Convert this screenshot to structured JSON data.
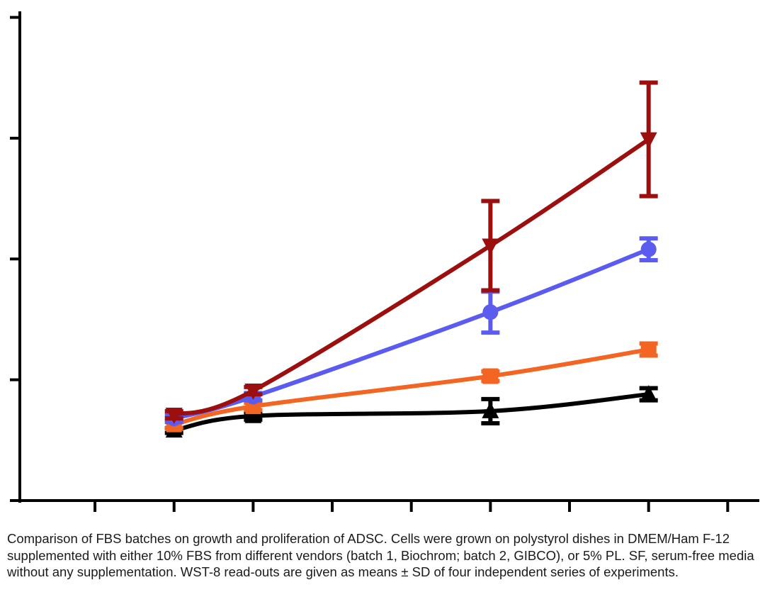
{
  "caption": "Comparison of FBS batches on growth and proliferation of ADSC. Cells were grown on polystyrol dishes in DMEM/Ham F-12 supplemented with either 10% FBS from different vendors (batch 1, Biochrom; batch 2, GIBCO), or 5% PL. SF, serum-free media without any supplementation. WST-8 read-outs are given as means ± SD of four independent series of experiments.",
  "chart_data": {
    "type": "line",
    "title": "",
    "xlabel": "",
    "ylabel": "",
    "x_ticks": [
      0,
      1,
      2,
      3,
      4,
      5,
      6,
      7,
      8
    ],
    "y_ticks": [
      0,
      1,
      2,
      3,
      4
    ],
    "xlim": [
      -0.95,
      8.4
    ],
    "ylim": [
      0,
      4.05
    ],
    "grid": false,
    "legend": "none",
    "series": [
      {
        "color": "#000000",
        "marker": "triangle-up",
        "x": [
          1,
          2,
          5,
          7
        ],
        "y": [
          0.58,
          0.7,
          0.74,
          0.88
        ],
        "err": [
          0.02,
          0.03,
          0.1,
          0.05
        ]
      },
      {
        "color": "#f26522",
        "marker": "square",
        "x": [
          1,
          2,
          5,
          7
        ],
        "y": [
          0.63,
          0.78,
          1.03,
          1.25
        ],
        "err": [
          0.03,
          0.03,
          0.04,
          0.05
        ]
      },
      {
        "color": "#5b5bf0",
        "marker": "circle",
        "x": [
          1,
          2,
          5,
          7
        ],
        "y": [
          0.68,
          0.86,
          1.56,
          2.08
        ],
        "err": [
          0.03,
          0.03,
          0.17,
          0.09
        ]
      },
      {
        "color": "#9b0f0f",
        "marker": "triangle-down",
        "x": [
          1,
          2,
          5,
          7
        ],
        "y": [
          0.71,
          0.91,
          2.11,
          2.99
        ],
        "err": [
          0.03,
          0.03,
          0.37,
          0.47
        ]
      }
    ]
  }
}
